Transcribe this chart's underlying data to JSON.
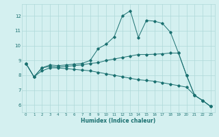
{
  "xlabel": "Humidex (Indice chaleur)",
  "bg_color": "#d4f0f0",
  "line_color": "#1a7070",
  "grid_color": "#aed8d8",
  "xlim": [
    -0.5,
    23.5
  ],
  "ylim": [
    5.5,
    12.8
  ],
  "yticks": [
    6,
    7,
    8,
    9,
    10,
    11,
    12
  ],
  "xticks": [
    0,
    1,
    2,
    3,
    4,
    5,
    6,
    7,
    8,
    9,
    10,
    11,
    12,
    13,
    14,
    15,
    16,
    17,
    18,
    19,
    20,
    21,
    22,
    23
  ],
  "lines": [
    {
      "x": [
        0,
        1,
        2,
        3,
        4,
        5,
        6,
        7,
        8,
        9,
        10,
        11,
        12,
        13,
        14,
        15,
        16,
        17,
        18,
        19,
        20,
        21,
        22,
        23
      ],
      "y": [
        8.8,
        7.9,
        8.5,
        8.7,
        8.65,
        8.7,
        8.75,
        8.8,
        9.0,
        9.8,
        10.1,
        10.6,
        12.0,
        12.35,
        10.55,
        11.7,
        11.65,
        11.5,
        10.9,
        9.5,
        8.0,
        6.65,
        6.3,
        5.9
      ]
    },
    {
      "x": [
        0,
        1,
        2,
        3,
        4,
        5,
        6,
        7,
        8,
        9,
        10,
        11,
        12,
        13,
        14,
        15,
        16,
        17,
        18,
        19,
        20,
        21,
        22,
        23
      ],
      "y": [
        8.8,
        7.9,
        8.5,
        8.6,
        8.55,
        8.6,
        8.65,
        8.7,
        8.8,
        8.85,
        9.0,
        9.1,
        9.2,
        9.3,
        9.4,
        9.4,
        9.42,
        9.45,
        9.5,
        9.5,
        8.0,
        6.65,
        6.3,
        5.9
      ]
    },
    {
      "x": [
        0,
        1,
        2,
        3,
        4,
        5,
        6,
        7,
        8,
        9,
        10,
        11,
        12,
        13,
        14,
        15,
        16,
        17,
        18,
        19,
        20,
        21,
        22,
        23
      ],
      "y": [
        8.8,
        7.9,
        8.3,
        8.5,
        8.5,
        8.45,
        8.4,
        8.35,
        8.3,
        8.2,
        8.1,
        8.0,
        7.9,
        7.8,
        7.7,
        7.65,
        7.6,
        7.5,
        7.4,
        7.3,
        7.2,
        6.65,
        6.3,
        5.9
      ]
    }
  ]
}
